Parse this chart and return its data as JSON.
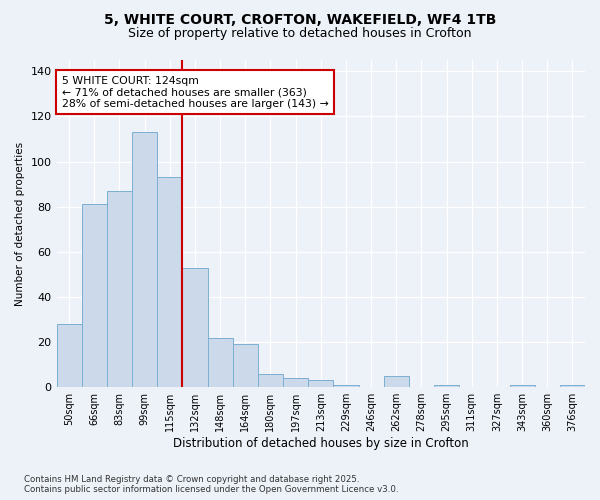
{
  "title1": "5, WHITE COURT, CROFTON, WAKEFIELD, WF4 1TB",
  "title2": "Size of property relative to detached houses in Crofton",
  "xlabel": "Distribution of detached houses by size in Crofton",
  "ylabel": "Number of detached properties",
  "bin_labels": [
    "50sqm",
    "66sqm",
    "83sqm",
    "99sqm",
    "115sqm",
    "132sqm",
    "148sqm",
    "164sqm",
    "180sqm",
    "197sqm",
    "213sqm",
    "229sqm",
    "246sqm",
    "262sqm",
    "278sqm",
    "295sqm",
    "311sqm",
    "327sqm",
    "343sqm",
    "360sqm",
    "376sqm"
  ],
  "bar_values": [
    28,
    81,
    87,
    113,
    93,
    53,
    22,
    19,
    6,
    4,
    3,
    1,
    0,
    5,
    0,
    1,
    0,
    0,
    1,
    0,
    1
  ],
  "bar_color": "#ccd9ea",
  "bar_edge_color": "#7bafd4",
  "vline_x": 5.0,
  "vline_color": "#cc0000",
  "annotation_text": "5 WHITE COURT: 124sqm\n← 71% of detached houses are smaller (363)\n28% of semi-detached houses are larger (143) →",
  "annotation_box_color": "#ffffff",
  "annotation_box_edge": "#cc0000",
  "ylim": [
    0,
    145
  ],
  "yticks": [
    0,
    20,
    40,
    60,
    80,
    100,
    120,
    140
  ],
  "footer": "Contains HM Land Registry data © Crown copyright and database right 2025.\nContains public sector information licensed under the Open Government Licence v3.0.",
  "bg_color": "#edf2f9",
  "plot_bg_color": "#edf2f9",
  "grid_color": "#ffffff"
}
